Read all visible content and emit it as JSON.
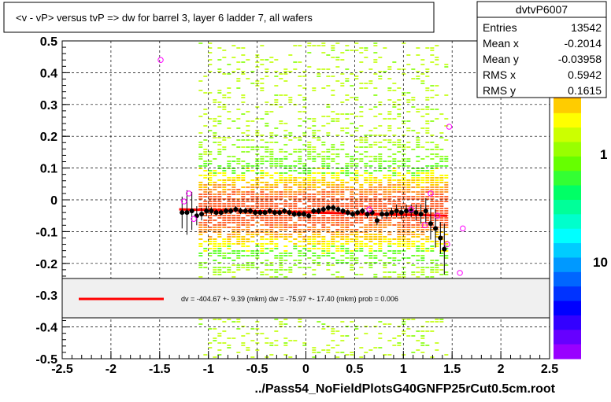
{
  "title": "<v - vP>       versus  tvP =>  dw for barrel 3, layer 6 ladder 7, all wafers",
  "footer": "../Pass54_NoFieldPlotsG40GNFP25rCut0.5cm.root",
  "stats": {
    "name": "dvtvP6007",
    "rows": [
      {
        "label": "Entries",
        "value": "13542"
      },
      {
        "label": "Mean x",
        "value": "-0.2014"
      },
      {
        "label": "Mean y",
        "value": "-0.03958"
      },
      {
        "label": "RMS x",
        "value": "0.5942"
      },
      {
        "label": "RMS y",
        "value": "0.1615"
      }
    ]
  },
  "fit_legend": "dv = -404.67 +-  9.39 (mkm) dw =  -75.97 +- 17.40 (mkm) prob = 0.006",
  "colorbar_labels": [
    "1",
    "10"
  ],
  "colors": {
    "fit_line": "#ff0000",
    "profile_points": "#000000",
    "open_markers": "#ff00ff",
    "legend_box": "#f0f0f0"
  },
  "chart_data": {
    "type": "heatmap",
    "xlim": [
      -2.5,
      2.5
    ],
    "ylim": [
      -0.5,
      0.5
    ],
    "x_ticks": [
      "-2.5",
      "-2",
      "-1.5",
      "-1",
      "-0.5",
      "0",
      "0.5",
      "1",
      "1.5",
      "2",
      "2.5"
    ],
    "x_tick_values": [
      -2.5,
      -2,
      -1.5,
      -1,
      -0.5,
      0,
      0.5,
      1,
      1.5,
      2,
      2.5
    ],
    "y_ticks": [
      "-0.5",
      "-0.4",
      "-0.3",
      "-0.2",
      "-0.1",
      "0",
      "0.1",
      "0.2",
      "0.3",
      "0.4",
      "0.5"
    ],
    "y_tick_values": [
      -0.5,
      -0.4,
      -0.3,
      -0.2,
      -0.1,
      0,
      0.1,
      0.2,
      0.3,
      0.4,
      0.5
    ],
    "grid": true,
    "colorbar_scale": "log",
    "profile": {
      "x": [
        -1.27,
        -1.22,
        -1.17,
        -1.12,
        -1.07,
        -1.02,
        -0.97,
        -0.92,
        -0.87,
        -0.82,
        -0.77,
        -0.72,
        -0.67,
        -0.62,
        -0.57,
        -0.52,
        -0.47,
        -0.42,
        -0.37,
        -0.32,
        -0.27,
        -0.22,
        -0.17,
        -0.12,
        -0.07,
        -0.02,
        0.03,
        0.08,
        0.13,
        0.18,
        0.23,
        0.28,
        0.33,
        0.38,
        0.43,
        0.48,
        0.53,
        0.58,
        0.63,
        0.68,
        0.73,
        0.78,
        0.83,
        0.88,
        0.93,
        0.98,
        1.03,
        1.08,
        1.13,
        1.18,
        1.23,
        1.28,
        1.33,
        1.38,
        1.42
      ],
      "y": [
        -0.04,
        -0.04,
        -0.035,
        -0.05,
        -0.045,
        -0.035,
        -0.035,
        -0.04,
        -0.04,
        -0.035,
        -0.035,
        -0.03,
        -0.035,
        -0.035,
        -0.035,
        -0.04,
        -0.04,
        -0.04,
        -0.035,
        -0.04,
        -0.04,
        -0.035,
        -0.04,
        -0.045,
        -0.045,
        -0.045,
        -0.05,
        -0.035,
        -0.035,
        -0.03,
        -0.025,
        -0.025,
        -0.03,
        -0.035,
        -0.04,
        -0.045,
        -0.04,
        -0.035,
        -0.045,
        -0.04,
        -0.065,
        -0.045,
        -0.045,
        -0.04,
        -0.035,
        -0.04,
        -0.035,
        -0.035,
        -0.04,
        -0.045,
        -0.035,
        -0.075,
        -0.09,
        -0.12,
        -0.155
      ],
      "yerr": [
        0.05,
        0.07,
        0.06,
        0.03,
        0.02,
        0.015,
        0.012,
        0.01,
        0.01,
        0.01,
        0.01,
        0.01,
        0.01,
        0.01,
        0.01,
        0.01,
        0.01,
        0.01,
        0.01,
        0.01,
        0.01,
        0.01,
        0.01,
        0.01,
        0.01,
        0.01,
        0.01,
        0.01,
        0.01,
        0.01,
        0.01,
        0.01,
        0.01,
        0.01,
        0.01,
        0.01,
        0.01,
        0.01,
        0.012,
        0.012,
        0.015,
        0.015,
        0.015,
        0.015,
        0.02,
        0.02,
        0.02,
        0.02,
        0.025,
        0.03,
        0.04,
        0.05,
        0.06,
        0.05,
        0.08
      ]
    },
    "open_markers": {
      "x": [
        -1.49,
        -1.25,
        -1.2,
        -1.15,
        0.65,
        1.08,
        1.22,
        1.28,
        1.35,
        1.45,
        1.47,
        1.58,
        1.61
      ],
      "y": [
        0.44,
        -0.005,
        0.02,
        -0.06,
        -0.03,
        -0.03,
        -0.08,
        0.02,
        -0.05,
        -0.14,
        0.23,
        -0.23,
        -0.09
      ]
    },
    "fit_line": {
      "x": [
        -1.3,
        1.45
      ],
      "y": [
        -0.03,
        -0.05
      ]
    }
  }
}
